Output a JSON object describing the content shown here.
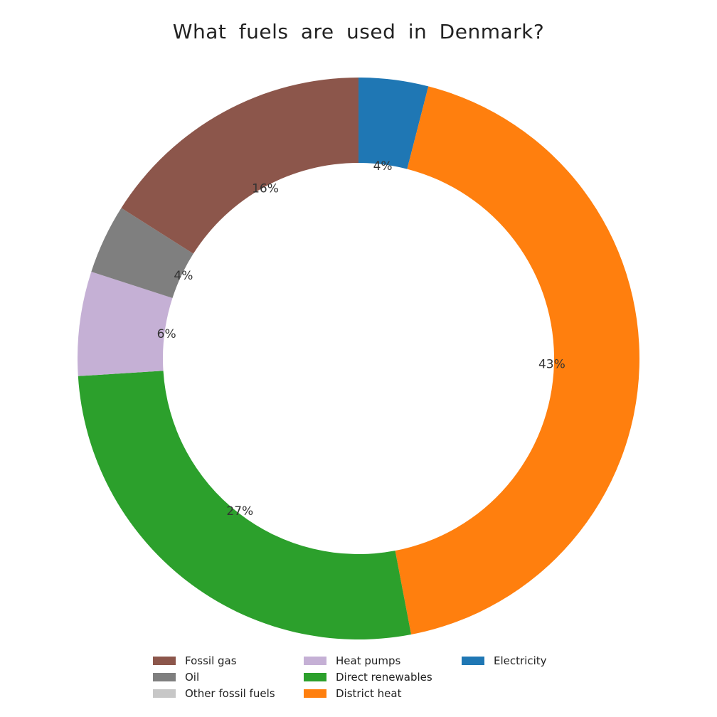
{
  "chart_data": {
    "type": "pie",
    "variant": "donut",
    "title": "What fuels are used in Denmark?",
    "start": "top, clockwise",
    "slices": [
      {
        "name": "Electricity",
        "value": 4,
        "label": "4%",
        "color": "#1f77b4"
      },
      {
        "name": "District heat",
        "value": 43,
        "label": "43%",
        "color": "#ff7f0e"
      },
      {
        "name": "Direct renewables",
        "value": 27,
        "label": "27%",
        "color": "#2ca02c"
      },
      {
        "name": "Heat pumps",
        "value": 6,
        "label": "6%",
        "color": "#c5b0d5"
      },
      {
        "name": "Oil",
        "value": 4,
        "label": "4%",
        "color": "#7f7f7f"
      },
      {
        "name": "Other fossil fuels",
        "value": 0,
        "label": "",
        "color": "#c7c7c7"
      },
      {
        "name": "Fossil gas",
        "value": 16,
        "label": "16%",
        "color": "#8c564b"
      }
    ],
    "legend": {
      "placement": "bottom",
      "entries": [
        "Fossil gas",
        "Oil",
        "Other fossil fuels",
        "Heat pumps",
        "Direct renewables",
        "District heat",
        "Electricity"
      ]
    }
  }
}
